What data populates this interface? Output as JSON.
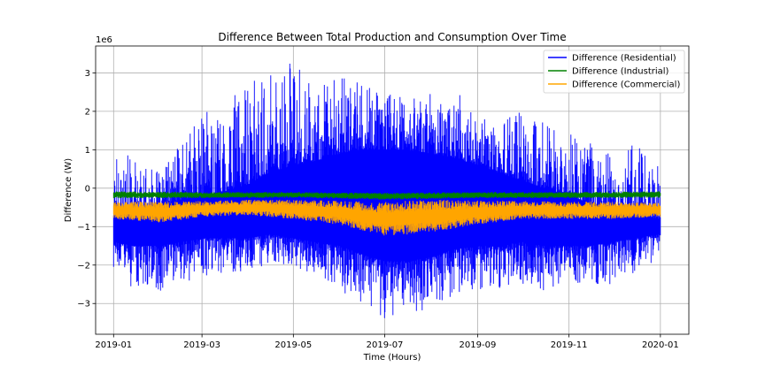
{
  "chart_data": {
    "type": "line",
    "title": "Difference Between Total Production and Consumption Over Time",
    "xlabel": "Time (Hours)",
    "ylabel": "Difference (W)",
    "y_scale_label": "1e6",
    "x_range": [
      "2018-12-20",
      "2020-01-20"
    ],
    "x_ticks": [
      "2019-01",
      "2019-03",
      "2019-05",
      "2019-07",
      "2019-09",
      "2019-11",
      "2020-01"
    ],
    "ylim": [
      -3.8,
      3.7
    ],
    "y_ticks": [
      -3,
      -2,
      -1,
      0,
      1,
      2,
      3
    ],
    "y_tick_labels": [
      "−3",
      "−2",
      "−1",
      "0",
      "1",
      "2",
      "3"
    ],
    "grid": true,
    "legend_position": "top-right",
    "series": [
      {
        "name": "Difference (Residential)",
        "color": "#0000ff",
        "dates": [
          "2019-01-01",
          "2019-01-15",
          "2019-02-01",
          "2019-02-15",
          "2019-03-01",
          "2019-03-15",
          "2019-04-01",
          "2019-04-15",
          "2019-05-01",
          "2019-05-15",
          "2019-06-01",
          "2019-06-15",
          "2019-07-01",
          "2019-07-15",
          "2019-08-01",
          "2019-08-15",
          "2019-09-01",
          "2019-09-15",
          "2019-10-01",
          "2019-10-15",
          "2019-11-01",
          "2019-11-15",
          "2019-12-01",
          "2019-12-15",
          "2020-01-01"
        ],
        "upper": [
          1.3,
          0.7,
          0.4,
          1.2,
          2.0,
          2.3,
          2.9,
          3.1,
          3.3,
          2.6,
          2.9,
          2.8,
          2.5,
          2.4,
          2.8,
          2.7,
          1.8,
          1.8,
          2.0,
          1.7,
          1.5,
          1.2,
          0.9,
          1.3,
          0.5
        ],
        "lower": [
          -2.4,
          -2.6,
          -2.7,
          -2.5,
          -2.3,
          -2.2,
          -2.2,
          -2.0,
          -2.1,
          -2.3,
          -2.7,
          -3.0,
          -3.5,
          -3.2,
          -3.3,
          -2.8,
          -2.7,
          -2.6,
          -2.5,
          -2.7,
          -2.6,
          -2.6,
          -2.5,
          -2.2,
          -1.8
        ],
        "body_upper": [
          -0.8,
          -0.7,
          -0.5,
          -0.3,
          -0.2,
          -0.1,
          0.1,
          0.4,
          0.6,
          0.7,
          0.9,
          1.0,
          1.0,
          1.0,
          0.9,
          0.8,
          0.6,
          0.4,
          0.2,
          0.0,
          -0.2,
          -0.4,
          -0.6,
          -0.7,
          -0.8
        ],
        "body_lower": [
          -1.4,
          -1.5,
          -1.5,
          -1.4,
          -1.3,
          -1.3,
          -1.3,
          -1.2,
          -1.3,
          -1.4,
          -1.5,
          -1.7,
          -1.9,
          -1.9,
          -1.8,
          -1.6,
          -1.5,
          -1.5,
          -1.4,
          -1.5,
          -1.5,
          -1.5,
          -1.4,
          -1.3,
          -1.2
        ]
      },
      {
        "name": "Difference (Industrial)",
        "color": "#008000",
        "dates": [
          "2019-01-01",
          "2019-03-01",
          "2019-05-01",
          "2019-07-01",
          "2019-09-01",
          "2019-11-01",
          "2020-01-01"
        ],
        "upper": [
          -0.08,
          -0.1,
          -0.1,
          -0.12,
          -0.1,
          -0.1,
          -0.08
        ],
        "lower": [
          -0.26,
          -0.26,
          -0.25,
          -0.3,
          -0.26,
          -0.26,
          -0.25
        ]
      },
      {
        "name": "Difference (Commercial)",
        "color": "#ffa500",
        "dates": [
          "2019-01-01",
          "2019-02-01",
          "2019-03-01",
          "2019-04-01",
          "2019-05-01",
          "2019-06-01",
          "2019-07-01",
          "2019-08-01",
          "2019-09-01",
          "2019-10-01",
          "2019-11-01",
          "2019-12-01",
          "2020-01-01"
        ],
        "upper": [
          -0.35,
          -0.35,
          -0.33,
          -0.3,
          -0.3,
          -0.33,
          -0.35,
          -0.3,
          -0.32,
          -0.33,
          -0.35,
          -0.35,
          -0.38
        ],
        "lower": [
          -0.8,
          -0.9,
          -0.75,
          -0.7,
          -0.8,
          -0.95,
          -1.25,
          -1.15,
          -0.95,
          -0.8,
          -0.8,
          -0.8,
          -0.75
        ]
      }
    ]
  }
}
